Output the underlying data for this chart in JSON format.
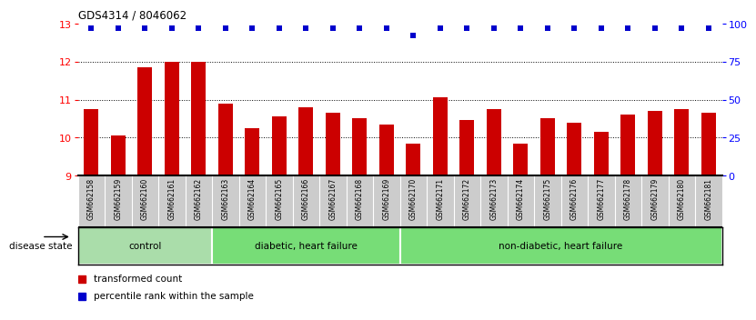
{
  "title": "GDS4314 / 8046062",
  "samples": [
    "GSM662158",
    "GSM662159",
    "GSM662160",
    "GSM662161",
    "GSM662162",
    "GSM662163",
    "GSM662164",
    "GSM662165",
    "GSM662166",
    "GSM662167",
    "GSM662168",
    "GSM662169",
    "GSM662170",
    "GSM662171",
    "GSM662172",
    "GSM662173",
    "GSM662174",
    "GSM662175",
    "GSM662176",
    "GSM662177",
    "GSM662178",
    "GSM662179",
    "GSM662180",
    "GSM662181"
  ],
  "bar_values": [
    10.75,
    10.05,
    11.85,
    12.0,
    12.0,
    10.9,
    10.25,
    10.55,
    10.8,
    10.65,
    10.5,
    10.35,
    9.85,
    11.05,
    10.45,
    10.75,
    9.85,
    10.5,
    10.4,
    10.15,
    10.6,
    10.7,
    10.75,
    10.65
  ],
  "percentile_values": [
    97,
    97,
    97,
    97,
    97,
    97,
    97,
    97,
    97,
    97,
    97,
    97,
    92,
    97,
    97,
    97,
    97,
    97,
    97,
    97,
    97,
    97,
    97,
    97
  ],
  "ylim_left": [
    9,
    13
  ],
  "ylim_right": [
    0,
    100
  ],
  "yticks_left": [
    9,
    10,
    11,
    12,
    13
  ],
  "yticks_right": [
    0,
    25,
    50,
    75,
    100
  ],
  "bar_color": "#cc0000",
  "dot_color": "#0000cc",
  "groups": [
    {
      "label": "control",
      "start": 0,
      "end": 5,
      "color": "#aaddaa"
    },
    {
      "label": "diabetic, heart failure",
      "start": 5,
      "end": 12,
      "color": "#77dd77"
    },
    {
      "label": "non-diabetic, heart failure",
      "start": 12,
      "end": 24,
      "color": "#77dd77"
    }
  ],
  "group_bar_bg": "#cccccc",
  "legend_items": [
    {
      "label": "transformed count",
      "color": "#cc0000"
    },
    {
      "label": "percentile rank within the sample",
      "color": "#0000cc"
    }
  ],
  "disease_state_label": "disease state"
}
